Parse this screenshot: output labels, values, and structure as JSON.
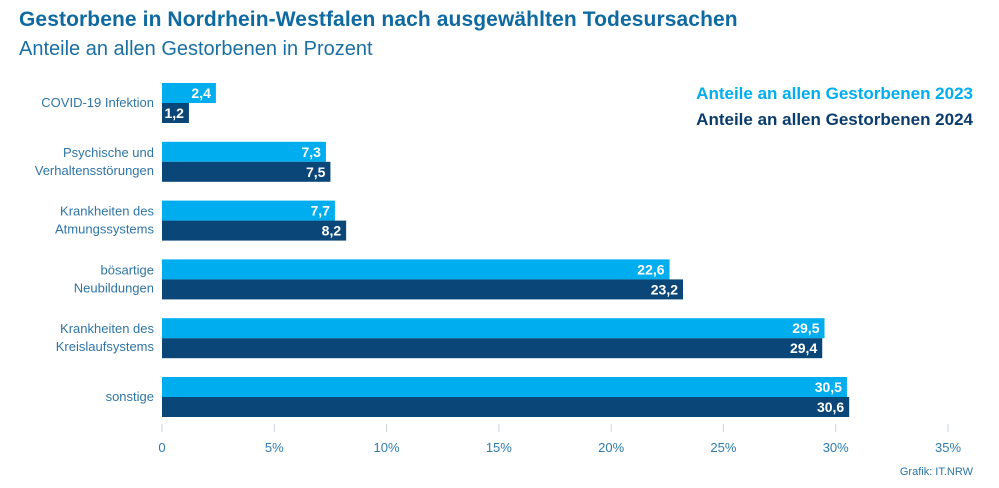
{
  "header": {
    "title": "Gestorbene in Nordrhein-Westfalen nach ausgewählten Todesursachen",
    "subtitle": "Anteile an allen Gestorbenen in Prozent"
  },
  "footer": {
    "credit": "Grafik: IT.NRW"
  },
  "colors": {
    "series_2023": "#00aeef",
    "series_2024": "#0b4679",
    "axis_text": "#2f7bb0"
  },
  "chart_data": {
    "type": "bar",
    "orientation": "horizontal",
    "title": "Gestorbene in Nordrhein-Westfalen nach ausgewählten Todesursachen",
    "subtitle": "Anteile an allen Gestorbenen in Prozent",
    "xlabel": "",
    "ylabel": "",
    "xlim": [
      0,
      35
    ],
    "grid": false,
    "legend_position": "top-right",
    "categories": [
      [
        "COVID-19 Infektion"
      ],
      [
        "Psychische und",
        "Verhaltensstörungen"
      ],
      [
        "Krankheiten des",
        "Atmungssystems"
      ],
      [
        "bösartige",
        "Neubildungen"
      ],
      [
        "Krankheiten des",
        "Kreislaufsystems"
      ],
      [
        "sonstige"
      ]
    ],
    "series": [
      {
        "name": "Anteile an allen Gestorbenen 2023",
        "color": "#00aeef",
        "values": [
          2.4,
          7.3,
          7.7,
          22.6,
          29.5,
          30.5
        ],
        "labels": [
          "2,4",
          "7,3",
          "7,7",
          "22,6",
          "29,5",
          "30,5"
        ]
      },
      {
        "name": "Anteile an allen Gestorbenen 2024",
        "color": "#0b4679",
        "values": [
          1.2,
          7.5,
          8.2,
          23.2,
          29.4,
          30.6
        ],
        "labels": [
          "1,2",
          "7,5",
          "8,2",
          "23,2",
          "29,4",
          "30,6"
        ]
      }
    ],
    "ticks": [
      0,
      5,
      10,
      15,
      20,
      25,
      30,
      35
    ],
    "tick_labels": [
      "0",
      "5%",
      "10%",
      "15%",
      "20%",
      "25%",
      "30%",
      "35%"
    ]
  }
}
